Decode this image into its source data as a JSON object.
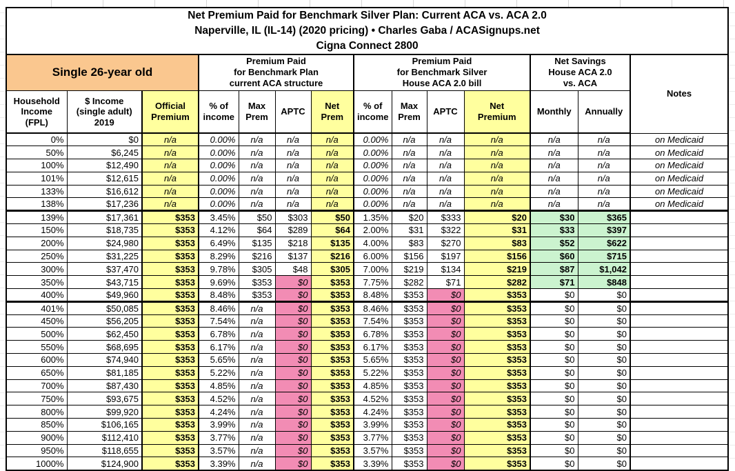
{
  "title": {
    "line1": "Net Premium Paid for Benchmark Silver Plan: Current ACA vs. ACA 2.0",
    "line2": "Naperville, IL (IL-14) (2020 pricing) • Charles Gaba / ACASignups.net",
    "line3": "Cigna Connect 2800"
  },
  "table": {
    "group_headers": {
      "subject": "Single 26-year old",
      "current_aca": "Premium Paid\nfor Benchmark Plan\ncurrent ACA structure",
      "aca_2_0": "Premium Paid\nfor Benchmark Silver\nHouse ACA 2.0 bill",
      "net_savings": "Net Savings\nHouse ACA 2.0\nvs. ACA",
      "notes": "Notes"
    },
    "columns": [
      "Household\nIncome\n(FPL)",
      "$ Income\n(single adult)\n2019",
      "Official\nPremium",
      "% of\nincome",
      "Max\nPrem",
      "APTC",
      "Net\nPrem",
      "% of\nincome",
      "Max\nPrem",
      "APTC",
      "Net\nPremium",
      "Monthly",
      "Annually"
    ],
    "column_keys": [
      "fpl",
      "income",
      "official-premium",
      "aca-pct-income",
      "aca-max-prem",
      "aca-aptc",
      "aca-net-prem",
      "aca2-pct-income",
      "aca2-max-prem",
      "aca2-aptc",
      "aca2-net-premium",
      "savings-monthly",
      "savings-annually",
      "notes"
    ],
    "medicaid_note": "on Medicaid",
    "section_break_rows": [
      5,
      12
    ],
    "rows": [
      [
        "0%",
        "$0",
        "n/a",
        "0.00%",
        "n/a",
        "n/a",
        "n/a",
        "0.00%",
        "n/a",
        "n/a",
        "n/a",
        "n/a",
        "n/a",
        "on Medicaid"
      ],
      [
        "50%",
        "$6,245",
        "n/a",
        "0.00%",
        "n/a",
        "n/a",
        "n/a",
        "0.00%",
        "n/a",
        "n/a",
        "n/a",
        "n/a",
        "n/a",
        "on Medicaid"
      ],
      [
        "100%",
        "$12,490",
        "n/a",
        "0.00%",
        "n/a",
        "n/a",
        "n/a",
        "0.00%",
        "n/a",
        "n/a",
        "n/a",
        "n/a",
        "n/a",
        "on Medicaid"
      ],
      [
        "101%",
        "$12,615",
        "n/a",
        "0.00%",
        "n/a",
        "n/a",
        "n/a",
        "0.00%",
        "n/a",
        "n/a",
        "n/a",
        "n/a",
        "n/a",
        "on Medicaid"
      ],
      [
        "133%",
        "$16,612",
        "n/a",
        "0.00%",
        "n/a",
        "n/a",
        "n/a",
        "0.00%",
        "n/a",
        "n/a",
        "n/a",
        "n/a",
        "n/a",
        "on Medicaid"
      ],
      [
        "138%",
        "$17,236",
        "n/a",
        "0.00%",
        "n/a",
        "n/a",
        "n/a",
        "0.00%",
        "n/a",
        "n/a",
        "n/a",
        "n/a",
        "n/a",
        "on Medicaid"
      ],
      [
        "139%",
        "$17,361",
        "$353",
        "3.45%",
        "$50",
        "$303",
        "$50",
        "1.35%",
        "$20",
        "$333",
        "$20",
        "$30",
        "$365",
        ""
      ],
      [
        "150%",
        "$18,735",
        "$353",
        "4.12%",
        "$64",
        "$289",
        "$64",
        "2.00%",
        "$31",
        "$322",
        "$31",
        "$33",
        "$397",
        ""
      ],
      [
        "200%",
        "$24,980",
        "$353",
        "6.49%",
        "$135",
        "$218",
        "$135",
        "4.00%",
        "$83",
        "$270",
        "$83",
        "$52",
        "$622",
        ""
      ],
      [
        "250%",
        "$31,225",
        "$353",
        "8.29%",
        "$216",
        "$137",
        "$216",
        "6.00%",
        "$156",
        "$197",
        "$156",
        "$60",
        "$715",
        ""
      ],
      [
        "300%",
        "$37,470",
        "$353",
        "9.78%",
        "$305",
        "$48",
        "$305",
        "7.00%",
        "$219",
        "$134",
        "$219",
        "$87",
        "$1,042",
        ""
      ],
      [
        "350%",
        "$43,715",
        "$353",
        "9.69%",
        "$353",
        "$0",
        "$353",
        "7.75%",
        "$282",
        "$71",
        "$282",
        "$71",
        "$848",
        ""
      ],
      [
        "400%",
        "$49,960",
        "$353",
        "8.48%",
        "$353",
        "$0",
        "$353",
        "8.48%",
        "$353",
        "$0",
        "$353",
        "$0",
        "$0",
        ""
      ],
      [
        "401%",
        "$50,085",
        "$353",
        "8.46%",
        "n/a",
        "$0",
        "$353",
        "8.46%",
        "$353",
        "$0",
        "$353",
        "$0",
        "$0",
        ""
      ],
      [
        "450%",
        "$56,205",
        "$353",
        "7.54%",
        "n/a",
        "$0",
        "$353",
        "7.54%",
        "$353",
        "$0",
        "$353",
        "$0",
        "$0",
        ""
      ],
      [
        "500%",
        "$62,450",
        "$353",
        "6.78%",
        "n/a",
        "$0",
        "$353",
        "6.78%",
        "$353",
        "$0",
        "$353",
        "$0",
        "$0",
        ""
      ],
      [
        "550%",
        "$68,695",
        "$353",
        "6.17%",
        "n/a",
        "$0",
        "$353",
        "6.17%",
        "$353",
        "$0",
        "$353",
        "$0",
        "$0",
        ""
      ],
      [
        "600%",
        "$74,940",
        "$353",
        "5.65%",
        "n/a",
        "$0",
        "$353",
        "5.65%",
        "$353",
        "$0",
        "$353",
        "$0",
        "$0",
        ""
      ],
      [
        "650%",
        "$81,185",
        "$353",
        "5.22%",
        "n/a",
        "$0",
        "$353",
        "5.22%",
        "$353",
        "$0",
        "$353",
        "$0",
        "$0",
        ""
      ],
      [
        "700%",
        "$87,430",
        "$353",
        "4.85%",
        "n/a",
        "$0",
        "$353",
        "4.85%",
        "$353",
        "$0",
        "$353",
        "$0",
        "$0",
        ""
      ],
      [
        "750%",
        "$93,675",
        "$353",
        "4.52%",
        "n/a",
        "$0",
        "$353",
        "4.52%",
        "$353",
        "$0",
        "$353",
        "$0",
        "$0",
        ""
      ],
      [
        "800%",
        "$99,920",
        "$353",
        "4.24%",
        "n/a",
        "$0",
        "$353",
        "4.24%",
        "$353",
        "$0",
        "$353",
        "$0",
        "$0",
        ""
      ],
      [
        "850%",
        "$106,165",
        "$353",
        "3.99%",
        "n/a",
        "$0",
        "$353",
        "3.99%",
        "$353",
        "$0",
        "$353",
        "$0",
        "$0",
        ""
      ],
      [
        "900%",
        "$112,410",
        "$353",
        "3.77%",
        "n/a",
        "$0",
        "$353",
        "3.77%",
        "$353",
        "$0",
        "$353",
        "$0",
        "$0",
        ""
      ],
      [
        "950%",
        "$118,655",
        "$353",
        "3.57%",
        "n/a",
        "$0",
        "$353",
        "3.57%",
        "$353",
        "$0",
        "$353",
        "$0",
        "$0",
        ""
      ],
      [
        "1000%",
        "$124,900",
        "$353",
        "3.39%",
        "n/a",
        "$0",
        "$353",
        "3.39%",
        "$353",
        "$0",
        "$353",
        "$0",
        "$0",
        ""
      ]
    ]
  },
  "colors": {
    "header_peach": "#FAC78F",
    "highlight_yellow": "#FFFF9E",
    "zero_aptc_pink": "#F28CB4",
    "savings_green": "#CBF3CF"
  }
}
